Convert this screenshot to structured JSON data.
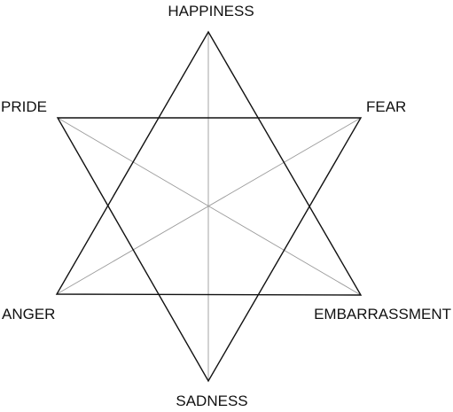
{
  "diagram": {
    "labels": {
      "top": "HAPPINESS",
      "upper_left": "PRIDE",
      "upper_right": "FEAR",
      "lower_left": "ANGER",
      "lower_right": "EMBARRASSMENT",
      "bottom": "SADNESS"
    },
    "colors": {
      "star_outline": "#111111",
      "axis_lines": "#9a9a9a",
      "text": "#111111"
    }
  }
}
